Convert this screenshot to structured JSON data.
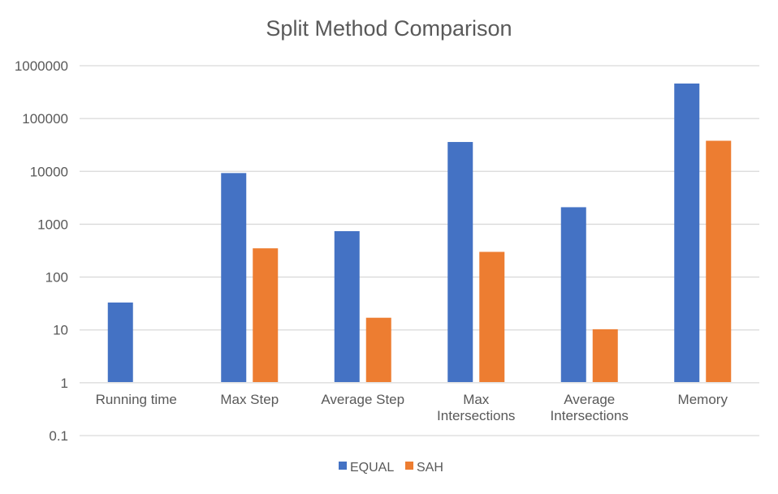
{
  "chart_data": {
    "type": "bar",
    "title": "Split Method Comparison",
    "y_scale": "log",
    "ylim": [
      0.1,
      1000000
    ],
    "y_ticks": [
      "0.1",
      "1",
      "10",
      "100",
      "1000",
      "10000",
      "100000",
      "1000000"
    ],
    "grid": true,
    "legend_position": "bottom-center",
    "categories": [
      [
        "Running time"
      ],
      [
        "Max Step"
      ],
      [
        "Average Step"
      ],
      [
        "Max",
        "Intersections"
      ],
      [
        "Average",
        "Intersections"
      ],
      [
        "Memory"
      ]
    ],
    "series": [
      {
        "name": "EQUAL",
        "color": "#4472C4",
        "values": [
          33,
          9300,
          740,
          36000,
          2100,
          460000
        ]
      },
      {
        "name": "SAH",
        "color": "#ED7D31",
        "values": [
          null,
          350,
          17,
          300,
          10.3,
          38000
        ]
      }
    ],
    "axis_color": "#d9d9d9",
    "text_color": "#595959"
  }
}
